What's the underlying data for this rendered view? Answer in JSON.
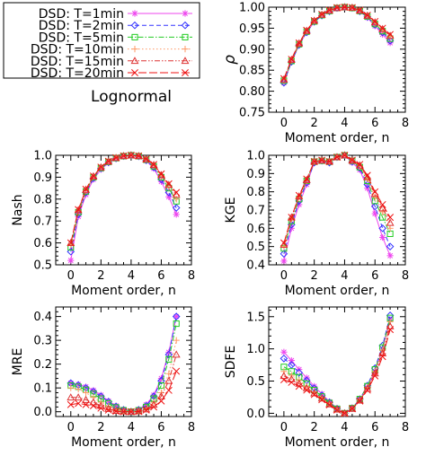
{
  "legend": {
    "entries": [
      {
        "label": "DSD: T=1min",
        "color": "#ee44ee",
        "marker": "asterisk",
        "dash": "solid"
      },
      {
        "label": "DSD: T=2min",
        "color": "#3333ff",
        "marker": "diamond",
        "dash": "dashed"
      },
      {
        "label": "DSD: T=5min",
        "color": "#22cc22",
        "marker": "square",
        "dash": "dashdot"
      },
      {
        "label": "DSD: T=10min",
        "color": "#ff9966",
        "marker": "plus",
        "dash": "dotted"
      },
      {
        "label": "DSD: T=15min",
        "color": "#dd3333",
        "marker": "triangle",
        "dash": "dashdotdot"
      },
      {
        "label": "DSD: T=20min",
        "color": "#ee1111",
        "marker": "x",
        "dash": "longdash"
      }
    ]
  },
  "model_label": "Lognormal",
  "chart_data": [
    {
      "id": "rho",
      "type": "line",
      "ylabel": "ρ",
      "xlabel": "Moment order, n",
      "xlim": [
        -1,
        8
      ],
      "ylim": [
        0.75,
        1.0
      ],
      "xticks": [
        "0",
        "2",
        "4",
        "6",
        "8"
      ],
      "yticks": [
        "0.75",
        "0.80",
        "0.85",
        "0.90",
        "0.95",
        "1.00"
      ],
      "x": [
        0,
        0.5,
        1,
        1.5,
        2,
        2.5,
        3,
        3.5,
        4,
        4.5,
        5,
        5.5,
        6,
        6.5,
        7
      ],
      "series": [
        {
          "values": [
            0.82,
            0.87,
            0.91,
            0.94,
            0.965,
            0.98,
            0.99,
            0.998,
            1.0,
            0.998,
            0.99,
            0.975,
            0.955,
            0.935,
            0.915
          ]
        },
        {
          "values": [
            0.82,
            0.87,
            0.91,
            0.94,
            0.965,
            0.98,
            0.99,
            0.998,
            1.0,
            0.998,
            0.99,
            0.977,
            0.958,
            0.94,
            0.92
          ]
        },
        {
          "values": [
            0.825,
            0.872,
            0.912,
            0.942,
            0.966,
            0.981,
            0.991,
            0.998,
            1.0,
            0.998,
            0.991,
            0.978,
            0.96,
            0.943,
            0.925
          ]
        },
        {
          "values": [
            0.827,
            0.874,
            0.913,
            0.943,
            0.967,
            0.982,
            0.992,
            0.998,
            1.0,
            0.998,
            0.992,
            0.979,
            0.962,
            0.946,
            0.93
          ]
        },
        {
          "values": [
            0.828,
            0.875,
            0.914,
            0.944,
            0.968,
            0.982,
            0.992,
            0.998,
            1.0,
            0.999,
            0.992,
            0.98,
            0.964,
            0.948,
            0.932
          ]
        },
        {
          "values": [
            0.83,
            0.876,
            0.915,
            0.945,
            0.968,
            0.983,
            0.993,
            0.999,
            1.0,
            0.999,
            0.993,
            0.981,
            0.966,
            0.95,
            0.935
          ]
        }
      ]
    },
    {
      "id": "nash",
      "type": "line",
      "ylabel": "Nash",
      "xlabel": "Moment order, n",
      "xlim": [
        -1,
        8
      ],
      "ylim": [
        0.5,
        1.0
      ],
      "xticks": [
        "0",
        "2",
        "4",
        "6",
        "8"
      ],
      "yticks": [
        "0.5",
        "0.6",
        "0.7",
        "0.8",
        "0.9",
        "1.0"
      ],
      "x": [
        0,
        0.5,
        1,
        1.5,
        2,
        2.5,
        3,
        3.5,
        4,
        4.5,
        5,
        5.5,
        6,
        6.5,
        7
      ],
      "series": [
        {
          "values": [
            0.52,
            0.72,
            0.82,
            0.89,
            0.935,
            0.965,
            0.985,
            0.995,
            1.0,
            0.995,
            0.975,
            0.94,
            0.88,
            0.81,
            0.73
          ]
        },
        {
          "values": [
            0.56,
            0.73,
            0.83,
            0.895,
            0.94,
            0.968,
            0.986,
            0.996,
            1.0,
            0.995,
            0.977,
            0.945,
            0.89,
            0.83,
            0.76
          ]
        },
        {
          "values": [
            0.58,
            0.74,
            0.835,
            0.9,
            0.942,
            0.97,
            0.987,
            0.996,
            1.0,
            0.996,
            0.98,
            0.95,
            0.9,
            0.85,
            0.79
          ]
        },
        {
          "values": [
            0.59,
            0.745,
            0.84,
            0.902,
            0.944,
            0.971,
            0.988,
            0.997,
            1.0,
            0.996,
            0.981,
            0.953,
            0.905,
            0.855,
            0.8
          ]
        },
        {
          "values": [
            0.6,
            0.75,
            0.843,
            0.904,
            0.945,
            0.972,
            0.988,
            0.997,
            1.0,
            0.997,
            0.982,
            0.956,
            0.91,
            0.865,
            0.82
          ]
        },
        {
          "values": [
            0.6,
            0.752,
            0.845,
            0.905,
            0.946,
            0.973,
            0.989,
            0.997,
            1.0,
            0.997,
            0.983,
            0.958,
            0.915,
            0.87,
            0.83
          ]
        }
      ]
    },
    {
      "id": "kge",
      "type": "line",
      "ylabel": "KGE",
      "xlabel": "Moment order, n",
      "xlim": [
        -1,
        8
      ],
      "ylim": [
        0.4,
        1.0
      ],
      "xticks": [
        "0",
        "2",
        "4",
        "6",
        "8"
      ],
      "yticks": [
        "0.4",
        "0.5",
        "0.6",
        "0.7",
        "0.8",
        "0.9",
        "1.0"
      ],
      "x": [
        0,
        0.5,
        1,
        1.5,
        2,
        2.5,
        3,
        3.5,
        4,
        4.5,
        5,
        5.5,
        6,
        6.5,
        7
      ],
      "series": [
        {
          "values": [
            0.42,
            0.6,
            0.73,
            0.84,
            0.96,
            0.97,
            0.96,
            0.99,
            1.0,
            0.96,
            0.92,
            0.82,
            0.68,
            0.55,
            0.45
          ]
        },
        {
          "values": [
            0.46,
            0.62,
            0.75,
            0.85,
            0.96,
            0.97,
            0.96,
            0.99,
            1.0,
            0.965,
            0.93,
            0.84,
            0.72,
            0.6,
            0.5
          ]
        },
        {
          "values": [
            0.49,
            0.64,
            0.76,
            0.86,
            0.965,
            0.97,
            0.965,
            0.99,
            1.0,
            0.97,
            0.935,
            0.86,
            0.75,
            0.66,
            0.57
          ]
        },
        {
          "values": [
            0.5,
            0.65,
            0.77,
            0.86,
            0.965,
            0.972,
            0.965,
            0.99,
            1.0,
            0.97,
            0.94,
            0.87,
            0.77,
            0.69,
            0.6
          ]
        },
        {
          "values": [
            0.51,
            0.66,
            0.775,
            0.865,
            0.966,
            0.972,
            0.966,
            0.99,
            1.0,
            0.972,
            0.945,
            0.88,
            0.79,
            0.71,
            0.63
          ]
        },
        {
          "values": [
            0.52,
            0.66,
            0.78,
            0.87,
            0.966,
            0.973,
            0.966,
            0.99,
            1.0,
            0.973,
            0.95,
            0.89,
            0.8,
            0.73,
            0.66
          ]
        }
      ]
    },
    {
      "id": "mre",
      "type": "line",
      "ylabel": "MRE",
      "xlabel": "Moment order, n",
      "xlim": [
        -1,
        8
      ],
      "ylim": [
        -0.02,
        0.44
      ],
      "xticks": [
        "0",
        "2",
        "4",
        "6",
        "8"
      ],
      "yticks": [
        "0.0",
        "0.1",
        "0.2",
        "0.3",
        "0.4"
      ],
      "x": [
        0,
        0.5,
        1,
        1.5,
        2,
        2.5,
        3,
        3.5,
        4,
        4.5,
        5,
        5.5,
        6,
        6.5,
        7
      ],
      "series": [
        {
          "values": [
            0.12,
            0.115,
            0.105,
            0.09,
            0.07,
            0.045,
            0.025,
            0.01,
            0.0,
            0.01,
            0.03,
            0.07,
            0.14,
            0.25,
            0.4
          ]
        },
        {
          "values": [
            0.12,
            0.112,
            0.1,
            0.085,
            0.065,
            0.042,
            0.022,
            0.008,
            0.0,
            0.008,
            0.025,
            0.065,
            0.13,
            0.24,
            0.4
          ]
        },
        {
          "values": [
            0.11,
            0.105,
            0.092,
            0.075,
            0.055,
            0.035,
            0.018,
            0.006,
            0.0,
            0.006,
            0.02,
            0.055,
            0.11,
            0.22,
            0.37
          ]
        },
        {
          "values": [
            0.1,
            0.095,
            0.08,
            0.06,
            0.04,
            0.022,
            0.01,
            0.003,
            0.0,
            0.003,
            0.013,
            0.04,
            0.08,
            0.16,
            0.3
          ]
        },
        {
          "values": [
            0.06,
            0.06,
            0.05,
            0.04,
            0.025,
            0.012,
            0.004,
            0.001,
            0.0,
            0.002,
            0.01,
            0.03,
            0.065,
            0.13,
            0.24
          ]
        },
        {
          "values": [
            0.03,
            0.035,
            0.03,
            0.025,
            0.015,
            0.007,
            0.002,
            0.0,
            0.0,
            0.001,
            0.007,
            0.02,
            0.045,
            0.09,
            0.17
          ]
        }
      ]
    },
    {
      "id": "sdfe",
      "type": "line",
      "ylabel": "SDFE",
      "xlabel": "Moment order, n",
      "xlim": [
        -1,
        8
      ],
      "ylim": [
        -0.05,
        1.65
      ],
      "xticks": [
        "0",
        "2",
        "4",
        "6",
        "8"
      ],
      "yticks": [
        "0.0",
        "0.5",
        "1.0",
        "1.5"
      ],
      "x": [
        0,
        0.5,
        1,
        1.5,
        2,
        2.5,
        3,
        3.5,
        4,
        4.5,
        5,
        5.5,
        6,
        6.5,
        7
      ],
      "series": [
        {
          "values": [
            0.95,
            0.82,
            0.68,
            0.55,
            0.42,
            0.3,
            0.18,
            0.08,
            0.0,
            0.08,
            0.2,
            0.4,
            0.65,
            1.0,
            1.45
          ]
        },
        {
          "values": [
            0.85,
            0.75,
            0.63,
            0.51,
            0.39,
            0.28,
            0.17,
            0.07,
            0.0,
            0.08,
            0.22,
            0.43,
            0.7,
            1.05,
            1.52
          ]
        },
        {
          "values": [
            0.72,
            0.65,
            0.56,
            0.46,
            0.36,
            0.26,
            0.16,
            0.07,
            0.0,
            0.08,
            0.22,
            0.42,
            0.68,
            1.02,
            1.48
          ]
        },
        {
          "values": [
            0.65,
            0.59,
            0.51,
            0.42,
            0.33,
            0.24,
            0.15,
            0.06,
            0.0,
            0.08,
            0.21,
            0.4,
            0.65,
            0.98,
            1.42
          ]
        },
        {
          "values": [
            0.58,
            0.53,
            0.46,
            0.39,
            0.31,
            0.23,
            0.14,
            0.06,
            0.0,
            0.07,
            0.2,
            0.38,
            0.62,
            0.93,
            1.35
          ]
        },
        {
          "values": [
            0.52,
            0.48,
            0.42,
            0.36,
            0.29,
            0.21,
            0.13,
            0.05,
            0.0,
            0.07,
            0.19,
            0.36,
            0.58,
            0.88,
            1.3
          ]
        }
      ]
    }
  ]
}
